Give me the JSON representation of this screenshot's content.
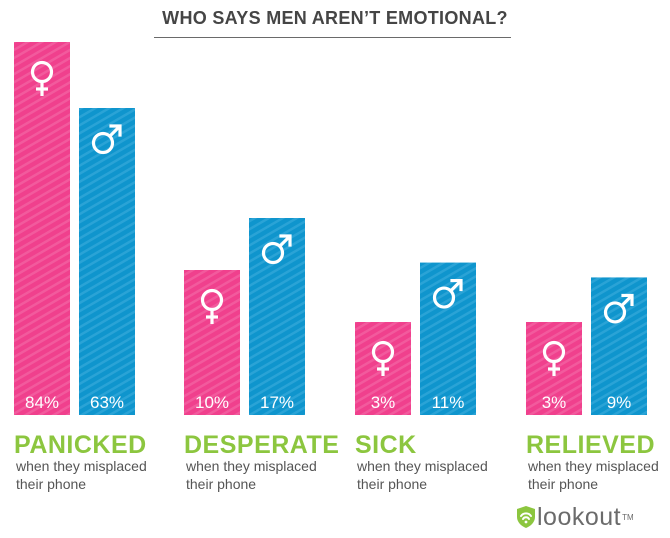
{
  "title": "WHO SAYS MEN AREN’T EMOTIONAL?",
  "colors": {
    "female": "#f0408d",
    "male": "#0f95cd",
    "category": "#8cc63f",
    "title": "#454545",
    "sub": "#555555"
  },
  "icons": {
    "female": "female-symbol-icon",
    "male": "male-symbol-icon",
    "logo": "lookout-shield-icon"
  },
  "chart_data": {
    "type": "bar",
    "title": "WHO SAYS MEN AREN’T EMOTIONAL?",
    "categories": [
      "PANICKED",
      "DESPERATE",
      "SICK",
      "RELIEVED"
    ],
    "category_subtitle_line1": "when they misplaced",
    "category_subtitle_line2": "their phone",
    "series": [
      {
        "key": "female",
        "values": [
          84,
          10,
          3,
          3
        ],
        "labels": [
          "84%",
          "10%",
          "3%",
          "3%"
        ]
      },
      {
        "key": "male",
        "values": [
          63,
          17,
          11,
          9
        ],
        "labels": [
          "63%",
          "17%",
          "11%",
          "9%"
        ]
      }
    ],
    "axis_scale": "broken",
    "grid": false,
    "legend": "none"
  },
  "footer": {
    "logo_text": "lookout",
    "logo_tm": "TM"
  }
}
